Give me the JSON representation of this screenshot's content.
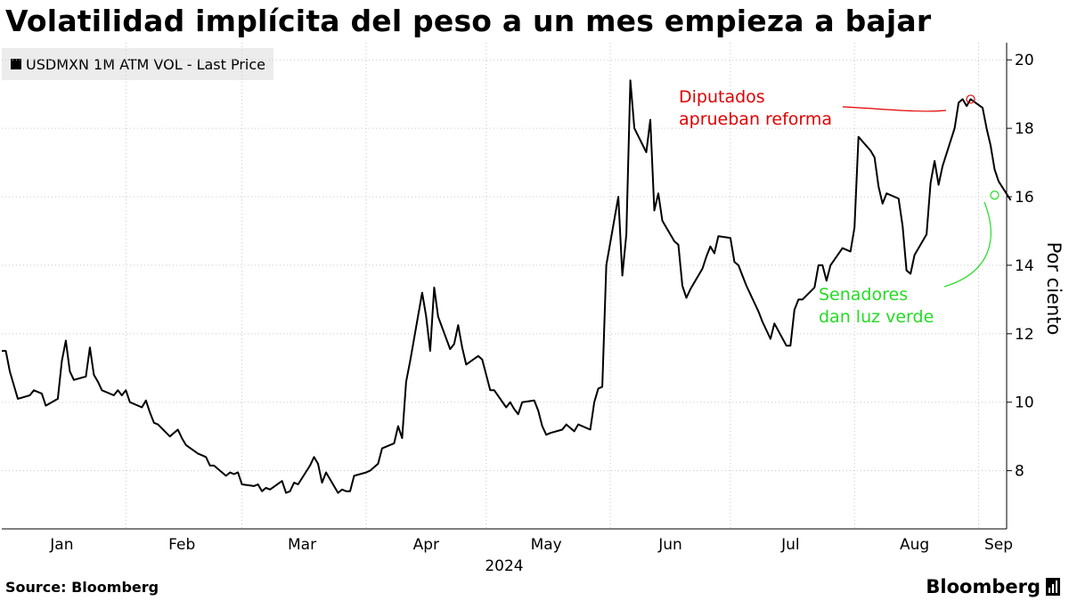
{
  "chart_data": {
    "type": "line",
    "title": "Volatilidad implícita del peso a un mes empieza a bajar",
    "legend": {
      "entries": [
        "USDMXN 1M ATM VOL - Last Price"
      ],
      "placement": "top-left"
    },
    "ylabel": "Por ciento",
    "ylim": [
      6.3,
      20.5
    ],
    "yticks": [
      8,
      10,
      12,
      14,
      16,
      18,
      20
    ],
    "xlim": [
      "2024-01-01",
      "2024-09-08"
    ],
    "xticks": [
      {
        "label": "Jan",
        "date": "2024-01-16"
      },
      {
        "label": "Feb",
        "date": "2024-02-15"
      },
      {
        "label": "Mar",
        "date": "2024-03-16"
      },
      {
        "label": "Apr",
        "date": "2024-04-16"
      },
      {
        "label": "May",
        "date": "2024-05-16"
      },
      {
        "label": "Jun",
        "date": "2024-06-16"
      },
      {
        "label": "Jul",
        "date": "2024-07-16"
      },
      {
        "label": "Aug",
        "date": "2024-08-16"
      },
      {
        "label": "Sep",
        "date": "2024-09-06"
      }
    ],
    "x_gridlines": [
      "2024-02-01",
      "2024-03-01",
      "2024-04-01",
      "2024-05-01",
      "2024-06-01",
      "2024-07-01",
      "2024-08-01",
      "2024-09-01"
    ],
    "year_label": "2024",
    "grid": true,
    "series": [
      {
        "name": "USDMXN 1M ATM VOL - Last Price",
        "color": "#000000",
        "points": [
          [
            "2024-01-01",
            11.5
          ],
          [
            "2024-01-02",
            11.5
          ],
          [
            "2024-01-03",
            10.9
          ],
          [
            "2024-01-04",
            10.5
          ],
          [
            "2024-01-05",
            10.1
          ],
          [
            "2024-01-08",
            10.2
          ],
          [
            "2024-01-09",
            10.35
          ],
          [
            "2024-01-10",
            10.3
          ],
          [
            "2024-01-11",
            10.25
          ],
          [
            "2024-01-12",
            9.9
          ],
          [
            "2024-01-15",
            10.1
          ],
          [
            "2024-01-16",
            11.2
          ],
          [
            "2024-01-17",
            11.8
          ],
          [
            "2024-01-18",
            10.9
          ],
          [
            "2024-01-19",
            10.65
          ],
          [
            "2024-01-22",
            10.75
          ],
          [
            "2024-01-23",
            11.6
          ],
          [
            "2024-01-24",
            10.8
          ],
          [
            "2024-01-25",
            10.6
          ],
          [
            "2024-01-26",
            10.35
          ],
          [
            "2024-01-29",
            10.2
          ],
          [
            "2024-01-30",
            10.35
          ],
          [
            "2024-01-31",
            10.2
          ],
          [
            "2024-02-01",
            10.35
          ],
          [
            "2024-02-02",
            10.0
          ],
          [
            "2024-02-05",
            9.85
          ],
          [
            "2024-02-06",
            10.05
          ],
          [
            "2024-02-07",
            9.7
          ],
          [
            "2024-02-08",
            9.4
          ],
          [
            "2024-02-09",
            9.35
          ],
          [
            "2024-02-12",
            9.0
          ],
          [
            "2024-02-13",
            9.1
          ],
          [
            "2024-02-14",
            9.2
          ],
          [
            "2024-02-15",
            8.95
          ],
          [
            "2024-02-16",
            8.75
          ],
          [
            "2024-02-19",
            8.5
          ],
          [
            "2024-02-20",
            8.45
          ],
          [
            "2024-02-21",
            8.4
          ],
          [
            "2024-02-22",
            8.15
          ],
          [
            "2024-02-23",
            8.15
          ],
          [
            "2024-02-26",
            7.85
          ],
          [
            "2024-02-27",
            7.95
          ],
          [
            "2024-02-28",
            7.9
          ],
          [
            "2024-02-29",
            7.95
          ],
          [
            "2024-03-01",
            7.6
          ],
          [
            "2024-03-04",
            7.55
          ],
          [
            "2024-03-05",
            7.6
          ],
          [
            "2024-03-06",
            7.4
          ],
          [
            "2024-03-07",
            7.5
          ],
          [
            "2024-03-08",
            7.45
          ],
          [
            "2024-03-11",
            7.7
          ],
          [
            "2024-03-12",
            7.35
          ],
          [
            "2024-03-13",
            7.4
          ],
          [
            "2024-03-14",
            7.65
          ],
          [
            "2024-03-15",
            7.6
          ],
          [
            "2024-03-18",
            8.15
          ],
          [
            "2024-03-19",
            8.4
          ],
          [
            "2024-03-20",
            8.2
          ],
          [
            "2024-03-21",
            7.65
          ],
          [
            "2024-03-22",
            7.95
          ],
          [
            "2024-03-25",
            7.35
          ],
          [
            "2024-03-26",
            7.45
          ],
          [
            "2024-03-27",
            7.4
          ],
          [
            "2024-03-28",
            7.4
          ],
          [
            "2024-03-29",
            7.85
          ],
          [
            "2024-04-01",
            7.95
          ],
          [
            "2024-04-02",
            8.0
          ],
          [
            "2024-04-03",
            8.1
          ],
          [
            "2024-04-04",
            8.2
          ],
          [
            "2024-04-05",
            8.65
          ],
          [
            "2024-04-08",
            8.8
          ],
          [
            "2024-04-09",
            9.3
          ],
          [
            "2024-04-10",
            8.95
          ],
          [
            "2024-04-11",
            10.6
          ],
          [
            "2024-04-12",
            11.2
          ],
          [
            "2024-04-15",
            13.2
          ],
          [
            "2024-04-16",
            12.5
          ],
          [
            "2024-04-17",
            11.5
          ],
          [
            "2024-04-18",
            13.35
          ],
          [
            "2024-04-19",
            12.5
          ],
          [
            "2024-04-22",
            11.55
          ],
          [
            "2024-04-23",
            11.7
          ],
          [
            "2024-04-24",
            12.25
          ],
          [
            "2024-04-25",
            11.6
          ],
          [
            "2024-04-26",
            11.1
          ],
          [
            "2024-04-29",
            11.35
          ],
          [
            "2024-04-30",
            11.25
          ],
          [
            "2024-05-01",
            10.8
          ],
          [
            "2024-05-02",
            10.35
          ],
          [
            "2024-05-03",
            10.35
          ],
          [
            "2024-05-06",
            9.85
          ],
          [
            "2024-05-07",
            10.0
          ],
          [
            "2024-05-08",
            9.8
          ],
          [
            "2024-05-09",
            9.65
          ],
          [
            "2024-05-10",
            10.0
          ],
          [
            "2024-05-13",
            10.05
          ],
          [
            "2024-05-14",
            9.75
          ],
          [
            "2024-05-15",
            9.3
          ],
          [
            "2024-05-16",
            9.05
          ],
          [
            "2024-05-17",
            9.1
          ],
          [
            "2024-05-20",
            9.2
          ],
          [
            "2024-05-21",
            9.35
          ],
          [
            "2024-05-22",
            9.25
          ],
          [
            "2024-05-23",
            9.15
          ],
          [
            "2024-05-24",
            9.35
          ],
          [
            "2024-05-27",
            9.2
          ],
          [
            "2024-05-28",
            10.0
          ],
          [
            "2024-05-29",
            10.4
          ],
          [
            "2024-05-30",
            10.45
          ],
          [
            "2024-05-31",
            14.0
          ],
          [
            "2024-06-03",
            16.0
          ],
          [
            "2024-06-04",
            13.7
          ],
          [
            "2024-06-05",
            14.9
          ],
          [
            "2024-06-06",
            19.4
          ],
          [
            "2024-06-07",
            18.0
          ],
          [
            "2024-06-10",
            17.3
          ],
          [
            "2024-06-11",
            18.25
          ],
          [
            "2024-06-12",
            15.6
          ],
          [
            "2024-06-13",
            16.1
          ],
          [
            "2024-06-14",
            15.3
          ],
          [
            "2024-06-17",
            14.7
          ],
          [
            "2024-06-18",
            14.6
          ],
          [
            "2024-06-19",
            13.4
          ],
          [
            "2024-06-20",
            13.05
          ],
          [
            "2024-06-21",
            13.3
          ],
          [
            "2024-06-24",
            13.9
          ],
          [
            "2024-06-25",
            14.25
          ],
          [
            "2024-06-26",
            14.55
          ],
          [
            "2024-06-27",
            14.35
          ],
          [
            "2024-06-28",
            14.85
          ],
          [
            "2024-07-01",
            14.8
          ],
          [
            "2024-07-02",
            14.1
          ],
          [
            "2024-07-03",
            14.0
          ],
          [
            "2024-07-04",
            13.7
          ],
          [
            "2024-07-05",
            13.4
          ],
          [
            "2024-07-08",
            12.65
          ],
          [
            "2024-07-09",
            12.35
          ],
          [
            "2024-07-10",
            12.1
          ],
          [
            "2024-07-11",
            11.85
          ],
          [
            "2024-07-12",
            12.3
          ],
          [
            "2024-07-15",
            11.65
          ],
          [
            "2024-07-16",
            11.65
          ],
          [
            "2024-07-17",
            12.7
          ],
          [
            "2024-07-18",
            13.0
          ],
          [
            "2024-07-19",
            13.0
          ],
          [
            "2024-07-22",
            13.35
          ],
          [
            "2024-07-23",
            14.0
          ],
          [
            "2024-07-24",
            14.0
          ],
          [
            "2024-07-25",
            13.55
          ],
          [
            "2024-07-26",
            14.0
          ],
          [
            "2024-07-29",
            14.5
          ],
          [
            "2024-07-30",
            14.45
          ],
          [
            "2024-07-31",
            14.4
          ],
          [
            "2024-08-01",
            15.1
          ],
          [
            "2024-08-02",
            17.75
          ],
          [
            "2024-08-05",
            17.35
          ],
          [
            "2024-08-06",
            17.15
          ],
          [
            "2024-08-07",
            16.3
          ],
          [
            "2024-08-08",
            15.8
          ],
          [
            "2024-08-09",
            16.1
          ],
          [
            "2024-08-12",
            15.95
          ],
          [
            "2024-08-13",
            15.15
          ],
          [
            "2024-08-14",
            13.85
          ],
          [
            "2024-08-15",
            13.75
          ],
          [
            "2024-08-16",
            14.3
          ],
          [
            "2024-08-19",
            14.9
          ],
          [
            "2024-08-20",
            16.4
          ],
          [
            "2024-08-21",
            17.05
          ],
          [
            "2024-08-22",
            16.35
          ],
          [
            "2024-08-23",
            16.9
          ],
          [
            "2024-08-26",
            18.0
          ],
          [
            "2024-08-27",
            18.75
          ],
          [
            "2024-08-28",
            18.85
          ],
          [
            "2024-08-29",
            18.65
          ],
          [
            "2024-08-30",
            18.85
          ],
          [
            "2024-09-02",
            18.6
          ],
          [
            "2024-09-03",
            18.0
          ],
          [
            "2024-09-04",
            17.5
          ],
          [
            "2024-09-05",
            16.8
          ],
          [
            "2024-09-06",
            16.45
          ],
          [
            "2024-09-09",
            15.9
          ]
        ]
      }
    ],
    "annotations": [
      {
        "text": [
          "Diputados",
          "aprueban reforma"
        ],
        "color": "#e00000",
        "marker": [
          "2024-08-30",
          18.85
        ]
      },
      {
        "text": [
          "Senadores",
          "dan luz verde"
        ],
        "color": "#22dd22",
        "marker": [
          "2024-09-05",
          16.05
        ]
      }
    ]
  },
  "footer": {
    "source": "Source: Bloomberg",
    "brand": "Bloomberg"
  }
}
